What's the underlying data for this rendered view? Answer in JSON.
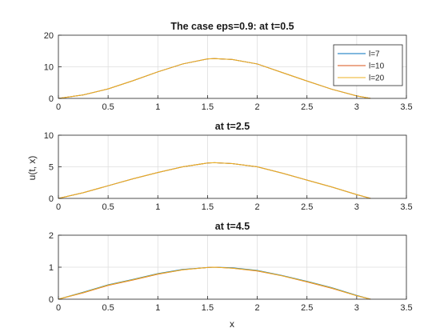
{
  "figure": {
    "xlabel": "x",
    "ylabel": "u(t, x)"
  },
  "colors": {
    "l7": "#0072BD",
    "l10": "#D95319",
    "l20": "#EDB120",
    "grid": "#dedede",
    "axis": "#262626"
  },
  "legend": {
    "entries": [
      "l=7",
      "l=10",
      "l=20"
    ]
  },
  "chart_data": [
    {
      "type": "line",
      "title": "The case eps=0.9: at t=0.5",
      "xlim": [
        0,
        3.5
      ],
      "ylim": [
        0,
        20
      ],
      "xticks": [
        "0",
        "0.5",
        "1",
        "1.5",
        "2",
        "2.5",
        "3",
        "3.5"
      ],
      "yticks": [
        "0",
        "10",
        "20"
      ],
      "grid": true,
      "legend_position": "top-right",
      "x": [
        0,
        0.25,
        0.5,
        0.75,
        1.0,
        1.25,
        1.5,
        1.571,
        1.75,
        2.0,
        2.25,
        2.5,
        2.75,
        3.0,
        3.14
      ],
      "series": [
        {
          "name": "l=7",
          "values": [
            0,
            1.1,
            3.0,
            5.6,
            8.4,
            10.9,
            12.5,
            12.6,
            12.3,
            10.9,
            8.2,
            5.5,
            2.9,
            0.8,
            0
          ]
        },
        {
          "name": "l=10",
          "values": [
            0,
            1.1,
            3.0,
            5.6,
            8.4,
            10.9,
            12.5,
            12.6,
            12.3,
            10.9,
            8.2,
            5.5,
            2.9,
            0.8,
            0
          ]
        },
        {
          "name": "l=20",
          "values": [
            0,
            1.1,
            3.0,
            5.6,
            8.4,
            10.9,
            12.5,
            12.6,
            12.3,
            10.9,
            8.2,
            5.5,
            2.9,
            0.8,
            0
          ]
        }
      ]
    },
    {
      "type": "line",
      "title": "at t=2.5",
      "xlim": [
        0,
        3.5
      ],
      "ylim": [
        0,
        10
      ],
      "xticks": [
        "0",
        "0.5",
        "1",
        "1.5",
        "2",
        "2.5",
        "3",
        "3.5"
      ],
      "yticks": [
        "0",
        "5",
        "10"
      ],
      "grid": true,
      "x": [
        0,
        0.25,
        0.5,
        0.75,
        1.0,
        1.25,
        1.5,
        1.571,
        1.75,
        2.0,
        2.25,
        2.5,
        2.75,
        3.0,
        3.14
      ],
      "series": [
        {
          "name": "l=7",
          "values": [
            0,
            0.9,
            2.0,
            3.1,
            4.1,
            5.0,
            5.6,
            5.65,
            5.5,
            5.0,
            4.0,
            2.9,
            1.8,
            0.6,
            0
          ]
        },
        {
          "name": "l=10",
          "values": [
            0,
            0.9,
            2.0,
            3.1,
            4.1,
            5.0,
            5.6,
            5.65,
            5.5,
            5.0,
            4.0,
            2.9,
            1.8,
            0.6,
            0
          ]
        },
        {
          "name": "l=20",
          "values": [
            0,
            0.9,
            2.0,
            3.1,
            4.1,
            5.0,
            5.6,
            5.65,
            5.5,
            5.0,
            4.0,
            2.9,
            1.8,
            0.6,
            0
          ]
        }
      ]
    },
    {
      "type": "line",
      "title": "at t=4.5",
      "xlim": [
        0,
        3.5
      ],
      "ylim": [
        0,
        2
      ],
      "xticks": [
        "0",
        "0.5",
        "1",
        "1.5",
        "2",
        "2.5",
        "3",
        "3.5"
      ],
      "yticks": [
        "0",
        "1",
        "2"
      ],
      "grid": true,
      "x": [
        0,
        0.25,
        0.5,
        0.75,
        1.0,
        1.25,
        1.5,
        1.571,
        1.75,
        2.0,
        2.25,
        2.5,
        2.75,
        3.0,
        3.14
      ],
      "series": [
        {
          "name": "l=7",
          "values": [
            0,
            0.22,
            0.45,
            0.62,
            0.8,
            0.93,
            0.99,
            1.0,
            0.98,
            0.9,
            0.74,
            0.56,
            0.36,
            0.12,
            0
          ]
        },
        {
          "name": "l=10",
          "values": [
            0,
            0.2,
            0.43,
            0.6,
            0.78,
            0.92,
            0.99,
            1.0,
            0.97,
            0.88,
            0.73,
            0.54,
            0.34,
            0.11,
            0
          ]
        },
        {
          "name": "l=20",
          "values": [
            0,
            0.21,
            0.44,
            0.61,
            0.79,
            0.92,
            0.99,
            1.0,
            0.97,
            0.89,
            0.73,
            0.55,
            0.35,
            0.11,
            0
          ]
        }
      ]
    }
  ]
}
